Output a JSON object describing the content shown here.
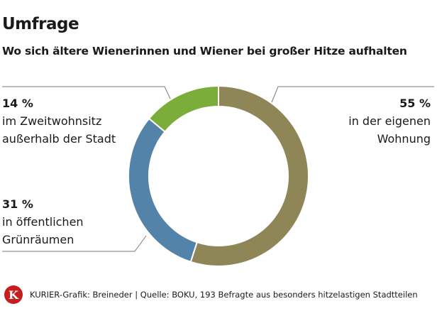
{
  "header": {
    "title": "Umfrage",
    "subtitle": "Wo sich ältere Wienerinnen und Wiener bei großer Hitze aufhalten"
  },
  "chart_data": {
    "type": "pie",
    "variant": "donut",
    "slices": [
      {
        "value": 55,
        "pct_label": "55 %",
        "label_lines": [
          "in der eigenen",
          "Wohnung"
        ],
        "color": "#8f8657"
      },
      {
        "value": 31,
        "pct_label": "31 %",
        "label_lines": [
          "in öffentlichen",
          "Grünräumen"
        ],
        "color": "#5383a8"
      },
      {
        "value": 14,
        "pct_label": "14 %",
        "label_lines": [
          "im Zweitwohnsitz",
          "außerhalb der Stadt"
        ],
        "color": "#7aad39"
      }
    ]
  },
  "footer": {
    "logo_letter": "K",
    "source": "KURIER-Grafik: Breineder | Quelle: BOKU, 193 Befragte aus besonders hitzelastigen Stadtteilen"
  },
  "colors": {
    "logo": "#c41e1e",
    "leader_line": "#7a7a7a"
  }
}
